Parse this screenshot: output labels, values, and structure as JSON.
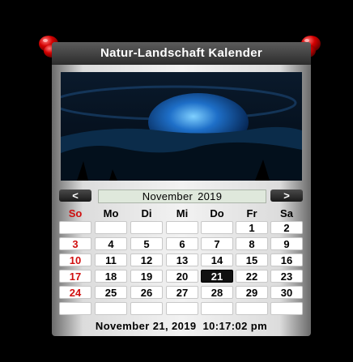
{
  "widget": {
    "title": "Natur-Landschaft Kalender"
  },
  "nav": {
    "prev_label": "<",
    "next_label": ">"
  },
  "month": {
    "name": "November",
    "year": "2019"
  },
  "weekdays": [
    "So",
    "Mo",
    "Di",
    "Mi",
    "Do",
    "Fr",
    "Sa"
  ],
  "weeks": [
    [
      "",
      "",
      "",
      "",
      "",
      "1",
      "2"
    ],
    [
      "3",
      "4",
      "5",
      "6",
      "7",
      "8",
      "9"
    ],
    [
      "10",
      "11",
      "12",
      "13",
      "14",
      "15",
      "16"
    ],
    [
      "17",
      "18",
      "19",
      "20",
      "21",
      "22",
      "23"
    ],
    [
      "24",
      "25",
      "26",
      "27",
      "28",
      "29",
      "30"
    ],
    [
      "",
      "",
      "",
      "",
      "",
      "",
      ""
    ]
  ],
  "selected_day": "21",
  "footer": {
    "date": "November 21, 2019",
    "time": "10:17:02  pm"
  },
  "colors": {
    "sunday": "#d01010",
    "today_bg": "#111111",
    "month_bg": "#dfe8dc"
  },
  "icons": {
    "pin": "red-pushpin-icon"
  }
}
